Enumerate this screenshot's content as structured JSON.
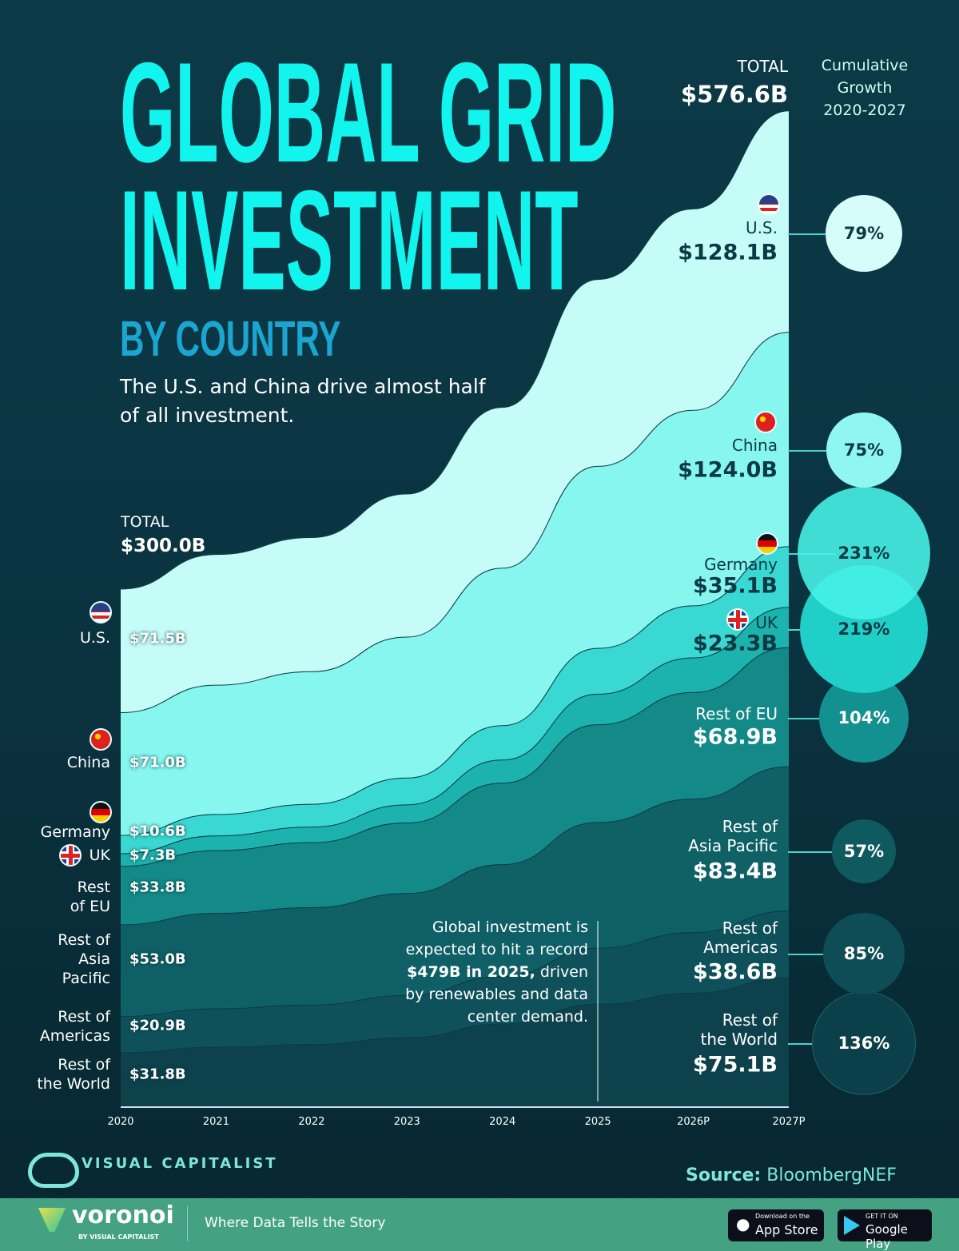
{
  "title": {
    "line1": "GLOBAL GRID",
    "line2": "INVESTMENT",
    "subtitle": "BY COUNTRY",
    "description": "The U.S. and China drive almost half of all investment."
  },
  "totals": {
    "start_label": "TOTAL",
    "start_value": "$300.0B",
    "end_label": "TOTAL",
    "end_value": "$576.6B"
  },
  "growth_header": [
    "Cumulative",
    "Growth",
    "2020-2027"
  ],
  "annotation": {
    "pre": "Global investment is expected to hit a record ",
    "bold": "$479B in 2025,",
    "post": " driven by renewables and data center demand."
  },
  "source": {
    "label": "Source:",
    "value": "BloombergNEF"
  },
  "brand": {
    "logo": "VISUAL CAPITALIST",
    "footer_logo": "voronoi",
    "footer_by": "BY VISUAL CAPITALIST",
    "tagline": "Where Data Tells the Story",
    "app_store_small": "Download on the",
    "app_store": "App Store",
    "google_small": "GET IT ON",
    "google": "Google Play"
  },
  "chart_data": {
    "type": "area",
    "stacked": true,
    "title": "Global Grid Investment by Country",
    "x": [
      "2020",
      "2021",
      "2022",
      "2023",
      "2024",
      "2025",
      "2026P",
      "2027P"
    ],
    "unit": "$B",
    "series": [
      {
        "name": "Rest of the World",
        "left_name": "Rest of the World",
        "start_label": "$31.8B",
        "end_label": "$75.1B",
        "growth": "136%",
        "values": [
          31.8,
          34.9,
          36.5,
          40.4,
          48.3,
          59.8,
          66.2,
          75.1
        ],
        "color": "#0e4650"
      },
      {
        "name": "Rest of Americas",
        "start_label": "$20.9B",
        "end_label": "$38.6B",
        "growth": "85%",
        "values": [
          20.9,
          22.2,
          22.8,
          24.4,
          27.6,
          32.4,
          35.0,
          38.6
        ],
        "color": "#0f5860"
      },
      {
        "name": "Rest of Asia Pacific",
        "start_label": "$53.0B",
        "end_label": "$83.4B",
        "growth": "57%",
        "values": [
          53.0,
          55.2,
          56.3,
          59.0,
          64.6,
          72.7,
          77.2,
          83.4
        ],
        "color": "#116a6e"
      },
      {
        "name": "Rest of EU",
        "start_label": "$33.8B",
        "end_label": "$68.9B",
        "growth": "104%",
        "values": [
          33.8,
          36.3,
          37.6,
          40.8,
          47.1,
          56.5,
          61.7,
          68.9
        ],
        "color": "#138a88"
      },
      {
        "name": "UK",
        "start_label": "$7.3B",
        "end_label": "$23.3B",
        "growth": "219%",
        "values": [
          7.3,
          8.5,
          9.0,
          10.5,
          13.4,
          17.7,
          20.0,
          23.3
        ],
        "color": "#1cb3ae"
      },
      {
        "name": "Germany",
        "start_label": "$10.6B",
        "end_label": "$35.1B",
        "growth": "231%",
        "values": [
          10.6,
          12.4,
          13.2,
          15.5,
          19.9,
          26.5,
          30.1,
          35.1
        ],
        "color": "#3ad8d2"
      },
      {
        "name": "China",
        "start_label": "$71.0B",
        "end_label": "$124.0B",
        "growth": "75%",
        "values": [
          71.0,
          74.8,
          76.7,
          81.5,
          91.1,
          105.3,
          113.1,
          124.0
        ],
        "color": "#86f6ef"
      },
      {
        "name": "U.S.",
        "start_label": "$71.5B",
        "end_label": "$128.1B",
        "growth": "79%",
        "values": [
          71.5,
          75.6,
          77.6,
          82.8,
          93.0,
          108.1,
          116.5,
          128.1
        ],
        "color": "#c6fcf7"
      }
    ],
    "left_names": [
      "Rest of\nthe World",
      "Rest of\nAmericas",
      "Rest of\nAsia\nPacific",
      "Rest\nof EU",
      "UK",
      "Germany",
      "China",
      "U.S."
    ],
    "right_names": [
      "Rest of\nthe World",
      "Rest of\nAmericas",
      "Rest of\nAsia Pacific",
      "Rest of EU",
      "UK",
      "Germany",
      "China",
      "U.S."
    ],
    "ylim": [
      0,
      576.6
    ],
    "grid": false,
    "legend": "none (direct labels)"
  }
}
